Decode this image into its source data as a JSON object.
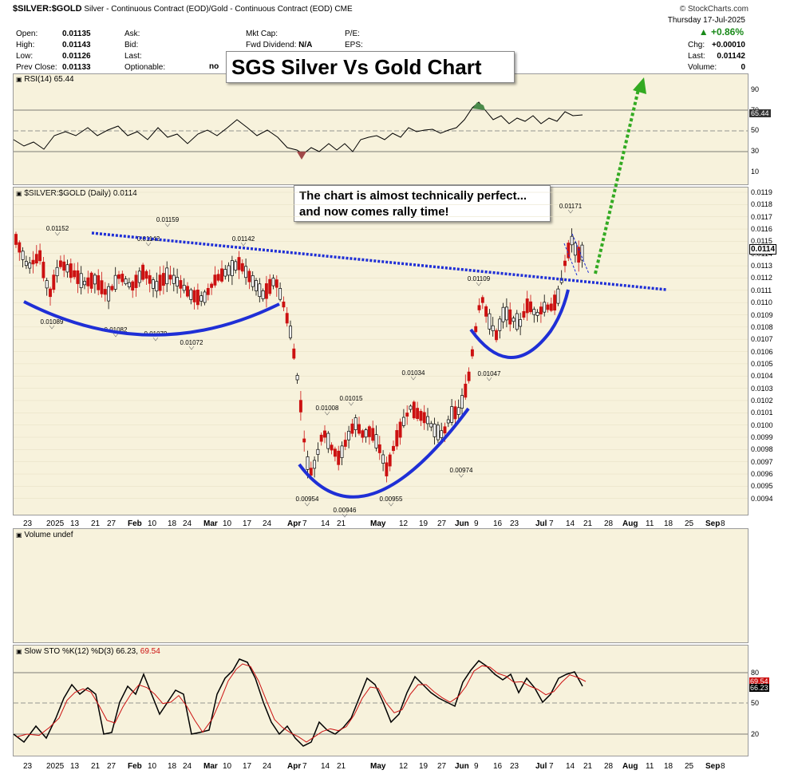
{
  "header": {
    "symbol": "$SILVER:$GOLD",
    "description": "Silver - Continuous Contract (EOD)/Gold - Continuous Contract (EOD)",
    "exchange": "CME",
    "copyright": "© StockCharts.com",
    "date": "Thursday  17-Jul-2025",
    "change_pct": "+0.86%",
    "fields": {
      "open_label": "Open:",
      "open": "0.01135",
      "high_label": "High:",
      "high": "0.01143",
      "low_label": "Low:",
      "low": "0.01126",
      "prev_label": "Prev Close:",
      "prev": "0.01133",
      "ask_label": "Ask:",
      "bid_label": "Bid:",
      "last_label": "Last:",
      "optionable_label": "Optionable:",
      "optionable": "no",
      "mktcap_label": "Mkt Cap:",
      "fwddiv_label": "Fwd Dividend:",
      "fwddiv": "N/A",
      "pe_label": "P/E:",
      "eps_label": "EPS:",
      "chg_label": "Chg:",
      "chg": "+0.00010",
      "last2_label": "Last:",
      "last2": "0.01142",
      "volume_label": "Volume:",
      "volume": "0"
    }
  },
  "title_box": "SGS Silver Vs Gold Chart",
  "callout": "The chart is almost technically perfect... and now comes rally time!",
  "rsi": {
    "label": "RSI(14) 65.44",
    "value_tag": "65.44",
    "levels": [
      "90",
      "70",
      "50",
      "30",
      "10"
    ]
  },
  "price": {
    "label": "$SILVER:$GOLD (Daily) 0.0114",
    "value_tag": "0.0114",
    "axis": [
      "0.0119",
      "0.0118",
      "0.0117",
      "0.0116",
      "0.0115",
      "0.0114",
      "0.0113",
      "0.0112",
      "0.0111",
      "0.0110",
      "0.0109",
      "0.0108",
      "0.0107",
      "0.0106",
      "0.0105",
      "0.0104",
      "0.0103",
      "0.0102",
      "0.0101",
      "0.0100",
      "0.0099",
      "0.0098",
      "0.0097",
      "0.0096",
      "0.0095",
      "0.0094"
    ],
    "annotations": [
      "0.01152",
      "0.01142",
      "0.01159",
      "0.01142",
      "0.01089",
      "0.01082",
      "0.01079",
      "0.01072",
      "0.00954",
      "0.01008",
      "0.01015",
      "0.00946",
      "0.01034",
      "0.00955",
      "0.00974",
      "0.01109",
      "0.01047",
      "0.01171"
    ]
  },
  "volume": {
    "label": "Volume undef"
  },
  "stoch": {
    "label_prefix": "Slow STO %K(12) %D(3) 66.23,",
    "label_d": "69.54",
    "levels": [
      "80",
      "50",
      "20"
    ],
    "tag_d": "69.54",
    "tag_k": "66.23"
  },
  "x_axis": [
    "23",
    "2025",
    "13",
    "21",
    "27",
    "Feb",
    "10",
    "18",
    "24",
    "Mar",
    "10",
    "17",
    "24",
    "Apr",
    "7",
    "14",
    "21",
    "May",
    "12",
    "19",
    "27",
    "Jun",
    "9",
    "16",
    "23",
    "Jul",
    "7",
    "14",
    "21",
    "28",
    "Aug",
    "11",
    "18",
    "25",
    "Sep",
    "8"
  ],
  "colors": {
    "up": "#000000",
    "down": "#cc1111",
    "trend": "#1f2fd6",
    "arrow": "#33aa22",
    "panel": "#f7f2dc",
    "positive": "#1a8a1a"
  },
  "chart_data": {
    "type": "line",
    "title": "SGS Silver Vs Gold Chart",
    "series": [
      {
        "name": "$SILVER:$GOLD",
        "x": [
          "Dec-23",
          "Jan-13",
          "Feb-03",
          "Mar-03",
          "Mar-31",
          "Apr-21",
          "May-12",
          "Jun-02",
          "Jun-23",
          "Jul-14",
          "Jul-17"
        ],
        "values": [
          0.0113,
          0.0112,
          0.0111,
          0.0111,
          0.0109,
          0.0096,
          0.0097,
          0.01,
          0.0107,
          0.0115,
          0.0114
        ]
      }
    ],
    "ylim": [
      0.0094,
      0.0119
    ]
  }
}
